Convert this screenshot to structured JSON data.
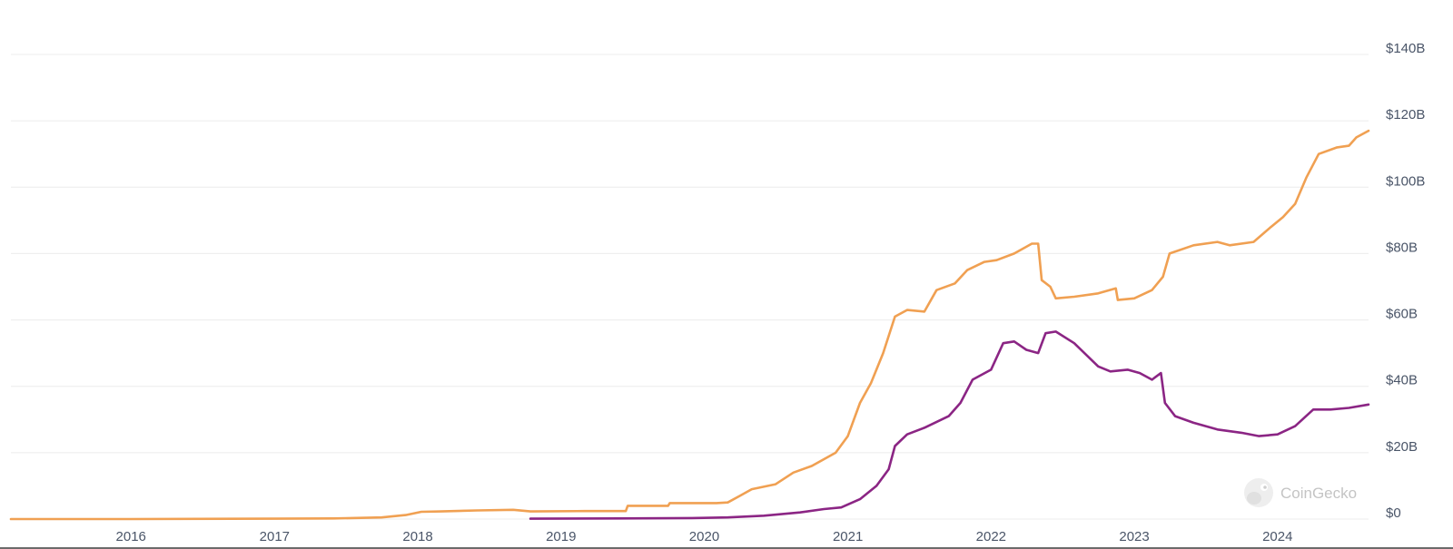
{
  "chart_data": {
    "type": "line",
    "xlabel": "",
    "ylabel": "",
    "x_range": [
      "2015-03-01",
      "2024-08-20"
    ],
    "ylim": [
      0,
      140
    ],
    "y_ticks": [
      {
        "value": 0,
        "label": "$0"
      },
      {
        "value": 20,
        "label": "$20B"
      },
      {
        "value": 40,
        "label": "$40B"
      },
      {
        "value": 60,
        "label": "$60B"
      },
      {
        "value": 80,
        "label": "$80B"
      },
      {
        "value": 100,
        "label": "$100B"
      },
      {
        "value": 120,
        "label": "$120B"
      },
      {
        "value": 140,
        "label": "$140B"
      }
    ],
    "x_ticks": [
      {
        "value": "2016-01-01",
        "label": "2016"
      },
      {
        "value": "2017-01-01",
        "label": "2017"
      },
      {
        "value": "2018-01-01",
        "label": "2018"
      },
      {
        "value": "2019-01-01",
        "label": "2019"
      },
      {
        "value": "2020-01-01",
        "label": "2020"
      },
      {
        "value": "2021-01-01",
        "label": "2021"
      },
      {
        "value": "2022-01-01",
        "label": "2022"
      },
      {
        "value": "2023-01-01",
        "label": "2023"
      },
      {
        "value": "2024-01-01",
        "label": "2024"
      }
    ],
    "grid": true,
    "y_axis_position": "right",
    "legend": "none",
    "series": [
      {
        "color": "#f0a052",
        "points": [
          [
            "2015-03-01",
            0
          ],
          [
            "2016-01-01",
            0
          ],
          [
            "2017-01-01",
            0.1
          ],
          [
            "2017-06-01",
            0.2
          ],
          [
            "2017-10-01",
            0.5
          ],
          [
            "2017-12-01",
            1.2
          ],
          [
            "2018-01-10",
            2.2
          ],
          [
            "2018-03-01",
            2.3
          ],
          [
            "2018-06-01",
            2.6
          ],
          [
            "2018-09-01",
            2.8
          ],
          [
            "2018-10-15",
            2.3
          ],
          [
            "2019-03-01",
            2.4
          ],
          [
            "2019-06-15",
            2.4
          ],
          [
            "2019-06-20",
            4.0
          ],
          [
            "2019-10-01",
            4.0
          ],
          [
            "2019-10-05",
            4.8
          ],
          [
            "2020-02-01",
            4.8
          ],
          [
            "2020-03-01",
            5.0
          ],
          [
            "2020-04-01",
            7.0
          ],
          [
            "2020-05-01",
            9.0
          ],
          [
            "2020-07-01",
            10.5
          ],
          [
            "2020-08-15",
            14.0
          ],
          [
            "2020-10-01",
            16.0
          ],
          [
            "2020-12-01",
            20.0
          ],
          [
            "2021-01-01",
            25.0
          ],
          [
            "2021-02-01",
            35.0
          ],
          [
            "2021-03-01",
            41.0
          ],
          [
            "2021-04-01",
            50.0
          ],
          [
            "2021-05-01",
            61.0
          ],
          [
            "2021-06-01",
            63.0
          ],
          [
            "2021-07-15",
            62.5
          ],
          [
            "2021-08-15",
            69.0
          ],
          [
            "2021-10-01",
            71.0
          ],
          [
            "2021-11-01",
            75.0
          ],
          [
            "2021-12-15",
            77.5
          ],
          [
            "2022-01-15",
            78.0
          ],
          [
            "2022-03-01",
            80.0
          ],
          [
            "2022-04-15",
            83.0
          ],
          [
            "2022-05-01",
            83.0
          ],
          [
            "2022-05-10",
            72.0
          ],
          [
            "2022-06-01",
            70.0
          ],
          [
            "2022-06-15",
            66.5
          ],
          [
            "2022-08-01",
            67.0
          ],
          [
            "2022-10-01",
            68.0
          ],
          [
            "2022-11-15",
            69.5
          ],
          [
            "2022-11-20",
            66.0
          ],
          [
            "2023-01-01",
            66.5
          ],
          [
            "2023-02-15",
            69.0
          ],
          [
            "2023-03-15",
            73.0
          ],
          [
            "2023-04-01",
            80.0
          ],
          [
            "2023-06-01",
            82.5
          ],
          [
            "2023-08-01",
            83.5
          ],
          [
            "2023-09-01",
            82.5
          ],
          [
            "2023-11-01",
            83.5
          ],
          [
            "2023-12-15",
            88.0
          ],
          [
            "2024-01-15",
            91.0
          ],
          [
            "2024-02-15",
            95.0
          ],
          [
            "2024-03-15",
            103.0
          ],
          [
            "2024-04-15",
            110.0
          ],
          [
            "2024-06-01",
            112.0
          ],
          [
            "2024-07-01",
            112.5
          ],
          [
            "2024-07-20",
            115.0
          ],
          [
            "2024-08-20",
            117.0
          ]
        ]
      },
      {
        "color": "#8b2584",
        "points": [
          [
            "2018-10-15",
            0.1
          ],
          [
            "2019-06-01",
            0.2
          ],
          [
            "2019-12-01",
            0.3
          ],
          [
            "2020-03-01",
            0.5
          ],
          [
            "2020-06-01",
            1.0
          ],
          [
            "2020-09-01",
            2.0
          ],
          [
            "2020-11-01",
            3.0
          ],
          [
            "2020-12-15",
            3.5
          ],
          [
            "2021-02-01",
            6.0
          ],
          [
            "2021-03-15",
            10.0
          ],
          [
            "2021-04-15",
            15.0
          ],
          [
            "2021-05-01",
            22.0
          ],
          [
            "2021-06-01",
            25.5
          ],
          [
            "2021-07-15",
            27.5
          ],
          [
            "2021-09-15",
            31.0
          ],
          [
            "2021-10-15",
            35.0
          ],
          [
            "2021-11-15",
            42.0
          ],
          [
            "2022-01-01",
            45.0
          ],
          [
            "2022-02-01",
            53.0
          ],
          [
            "2022-03-01",
            53.5
          ],
          [
            "2022-04-01",
            51.0
          ],
          [
            "2022-05-01",
            50.0
          ],
          [
            "2022-05-20",
            56.0
          ],
          [
            "2022-06-15",
            56.5
          ],
          [
            "2022-08-01",
            53.0
          ],
          [
            "2022-10-01",
            46.0
          ],
          [
            "2022-11-01",
            44.5
          ],
          [
            "2022-12-15",
            45.0
          ],
          [
            "2023-01-15",
            44.0
          ],
          [
            "2023-02-15",
            42.0
          ],
          [
            "2023-03-10",
            44.0
          ],
          [
            "2023-03-20",
            35.0
          ],
          [
            "2023-04-15",
            31.0
          ],
          [
            "2023-06-01",
            29.0
          ],
          [
            "2023-08-01",
            27.0
          ],
          [
            "2023-10-01",
            26.0
          ],
          [
            "2023-11-15",
            25.0
          ],
          [
            "2024-01-01",
            25.5
          ],
          [
            "2024-02-15",
            28.0
          ],
          [
            "2024-04-01",
            33.0
          ],
          [
            "2024-05-15",
            33.0
          ],
          [
            "2024-07-01",
            33.5
          ],
          [
            "2024-08-20",
            34.5
          ]
        ]
      }
    ]
  },
  "watermark": {
    "text": "CoinGecko",
    "icon": "gecko-logo-icon"
  }
}
